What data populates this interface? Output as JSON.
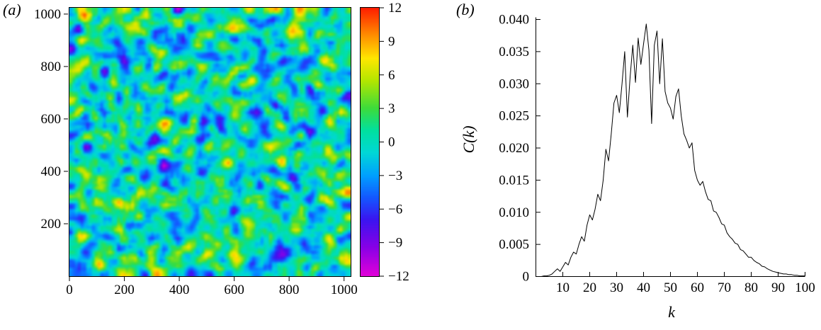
{
  "figure": {
    "panel_a_label": "(a)",
    "panel_b_label": "(b)"
  },
  "chart_data": [
    {
      "type": "heatmap",
      "panel": "(a)",
      "description": "Snapshot of a two-dimensional random band-limited noise scalar field on a 1024x1024 domain, rainbow colormap",
      "xlim": [
        0,
        1024
      ],
      "ylim": [
        0,
        1024
      ],
      "x_ticks": [
        0,
        200,
        400,
        600,
        800,
        1000
      ],
      "y_ticks": [
        200,
        400,
        600,
        800,
        1000
      ],
      "colorbar": {
        "vmin": -12,
        "vmax": 12,
        "tick_values": [
          12,
          9,
          6,
          3,
          0,
          -3,
          -6,
          -9,
          -12
        ],
        "tick_labels": [
          "12",
          "9",
          "6",
          "3",
          "0",
          "−3",
          "−6",
          "−9",
          "−12"
        ],
        "colormap": [
          {
            "v": -12,
            "c": "#e100d9"
          },
          {
            "v": -9.5,
            "c": "#8a00e6"
          },
          {
            "v": -7,
            "c": "#3c14f0"
          },
          {
            "v": -5,
            "c": "#1457ff"
          },
          {
            "v": -3,
            "c": "#00a0ff"
          },
          {
            "v": -1,
            "c": "#00d7d7"
          },
          {
            "v": 1,
            "c": "#00e0a0"
          },
          {
            "v": 3,
            "c": "#3cdc3c"
          },
          {
            "v": 5.5,
            "c": "#b4e600"
          },
          {
            "v": 7.5,
            "c": "#ffe600"
          },
          {
            "v": 9.5,
            "c": "#ff9100"
          },
          {
            "v": 12,
            "c": "#ff1e00"
          }
        ]
      },
      "noise": {
        "seed": 7,
        "grid": [
          100,
          96
        ],
        "smooth_passes": 2,
        "std": 3.0
      }
    },
    {
      "type": "line",
      "panel": "(b)",
      "xlabel": "k",
      "ylabel": "C(k)",
      "xlim": [
        0,
        100
      ],
      "ylim": [
        0,
        0.04
      ],
      "x_ticks": [
        10,
        20,
        30,
        40,
        50,
        60,
        70,
        80,
        90,
        100
      ],
      "y_tick_values": [
        0,
        0.005,
        0.01,
        0.015,
        0.02,
        0.025,
        0.03,
        0.035,
        0.04
      ],
      "y_tick_labels": [
        "0",
        "0.005",
        "0.010",
        "0.015",
        "0.020",
        "0.025",
        "0.030",
        "0.035",
        "0.040"
      ],
      "line_color": "#000000",
      "x": [
        1,
        2,
        3,
        4,
        5,
        6,
        7,
        8,
        9,
        10,
        11,
        12,
        13,
        14,
        15,
        16,
        17,
        18,
        19,
        20,
        21,
        22,
        23,
        24,
        25,
        26,
        27,
        28,
        29,
        30,
        31,
        32,
        33,
        34,
        35,
        36,
        37,
        38,
        39,
        40,
        41,
        42,
        43,
        44,
        45,
        46,
        47,
        48,
        49,
        50,
        51,
        52,
        53,
        54,
        55,
        56,
        57,
        58,
        59,
        60,
        61,
        62,
        63,
        64,
        65,
        66,
        67,
        68,
        69,
        70,
        71,
        72,
        73,
        74,
        75,
        76,
        77,
        78,
        79,
        80,
        81,
        82,
        83,
        84,
        85,
        86,
        87,
        88,
        89,
        90,
        91,
        92,
        93,
        94,
        95,
        96,
        97,
        98,
        99,
        100
      ],
      "y": [
        0.0,
        0.0,
        0.0001,
        0.0001,
        0.0002,
        0.0004,
        0.0008,
        0.0012,
        0.0008,
        0.0015,
        0.0022,
        0.0018,
        0.003,
        0.0038,
        0.0035,
        0.005,
        0.0062,
        0.0055,
        0.008,
        0.0096,
        0.0088,
        0.0105,
        0.0128,
        0.0118,
        0.015,
        0.0198,
        0.018,
        0.0222,
        0.027,
        0.0282,
        0.0255,
        0.03,
        0.035,
        0.0248,
        0.031,
        0.036,
        0.0302,
        0.0371,
        0.033,
        0.0362,
        0.0393,
        0.0352,
        0.0238,
        0.036,
        0.0382,
        0.03,
        0.037,
        0.0288,
        0.027,
        0.0262,
        0.0245,
        0.028,
        0.0292,
        0.025,
        0.0222,
        0.0212,
        0.02,
        0.0208,
        0.0165,
        0.015,
        0.0142,
        0.0148,
        0.0132,
        0.012,
        0.0118,
        0.0102,
        0.01,
        0.0092,
        0.0082,
        0.008,
        0.0068,
        0.0062,
        0.0058,
        0.0052,
        0.005,
        0.0042,
        0.004,
        0.0035,
        0.003,
        0.003,
        0.0025,
        0.0022,
        0.002,
        0.0016,
        0.0015,
        0.0012,
        0.001,
        0.0008,
        0.0007,
        0.0006,
        0.0005,
        0.0004,
        0.0004,
        0.0003,
        0.0003,
        0.0002,
        0.0002,
        0.0001,
        0.0001,
        0.0001
      ]
    }
  ]
}
